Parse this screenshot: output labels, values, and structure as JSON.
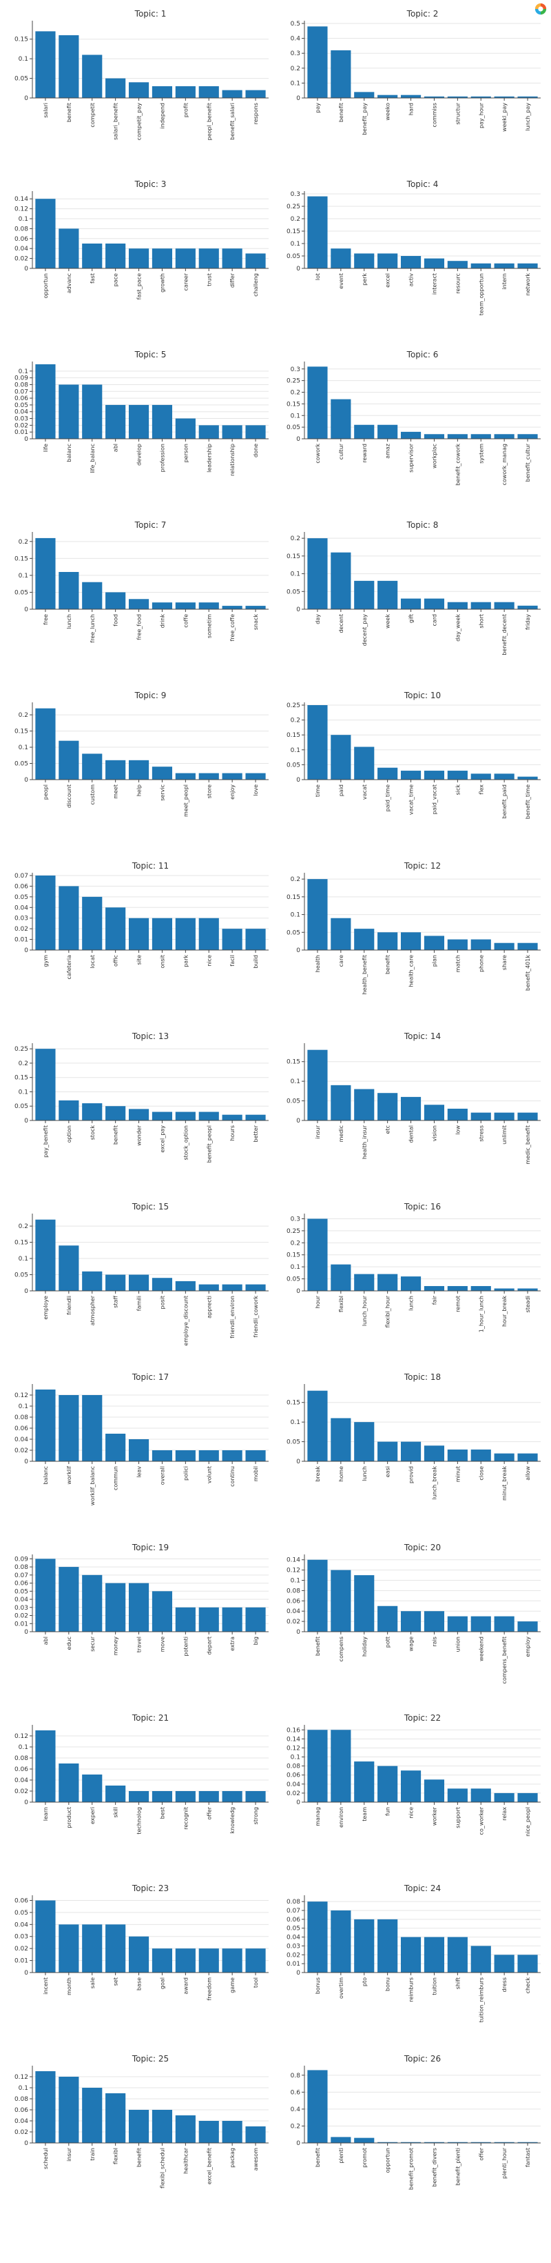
{
  "toolbar": {
    "logo_icon": "bokeh-logo-icon"
  },
  "style": {
    "bar_color": "#1f77b4",
    "grid_color": "#e5e5e5",
    "axis_color": "#444444"
  },
  "chart_data": [
    {
      "type": "bar",
      "title": "Topic: 1",
      "ylim": [
        0,
        0.19
      ],
      "yticks": [
        0,
        0.05,
        0.1,
        0.15
      ],
      "tick_labels": [
        "0",
        "0.05",
        "0.1",
        "0.15"
      ],
      "categories": [
        "salari",
        "benefit",
        "competit",
        "salari_benefit",
        "competit_pay",
        "independ",
        "profit",
        "peopl_benefit",
        "benefit_salari",
        "respons"
      ],
      "values": [
        0.17,
        0.16,
        0.11,
        0.05,
        0.04,
        0.03,
        0.03,
        0.03,
        0.02,
        0.02
      ]
    },
    {
      "type": "bar",
      "title": "Topic: 2",
      "ylim": [
        0,
        0.5
      ],
      "yticks": [
        0,
        0.1,
        0.2,
        0.3,
        0.4,
        0.5
      ],
      "tick_labels": [
        "0",
        "0.1",
        "0.2",
        "0.3",
        "0.4",
        "0.5"
      ],
      "categories": [
        "pay",
        "benefit",
        "benefit_pay",
        "weeko",
        "hard",
        "commiss",
        "structur",
        "pay_hour",
        "weekl_pay",
        "lunch_pay"
      ],
      "values": [
        0.48,
        0.32,
        0.04,
        0.02,
        0.02,
        0.01,
        0.01,
        0.01,
        0.01,
        0.01
      ]
    },
    {
      "type": "bar",
      "title": "Topic: 3",
      "ylim": [
        0,
        0.15
      ],
      "yticks": [
        0,
        0.02,
        0.04,
        0.06,
        0.08,
        0.1,
        0.12,
        0.14
      ],
      "tick_labels": [
        "0",
        "0.02",
        "0.04",
        "0.06",
        "0.08",
        "0.1",
        "0.12",
        "0.14"
      ],
      "categories": [
        "opportun",
        "advanc",
        "fast",
        "pace",
        "fast_pace",
        "growth",
        "career",
        "trust",
        "differ",
        "challeng"
      ],
      "values": [
        0.14,
        0.08,
        0.05,
        0.05,
        0.04,
        0.04,
        0.04,
        0.04,
        0.04,
        0.03
      ]
    },
    {
      "type": "bar",
      "title": "Topic: 4",
      "ylim": [
        0,
        0.3
      ],
      "yticks": [
        0,
        0.05,
        0.1,
        0.15,
        0.2,
        0.25,
        0.3
      ],
      "tick_labels": [
        "0",
        "0.05",
        "0.1",
        "0.15",
        "0.2",
        "0.25",
        "0.3"
      ],
      "categories": [
        "lot",
        "event",
        "perk",
        "excel",
        "activ",
        "interact",
        "resourc",
        "team_opportun",
        "intern",
        "network"
      ],
      "values": [
        0.29,
        0.08,
        0.06,
        0.06,
        0.05,
        0.04,
        0.03,
        0.02,
        0.02,
        0.02
      ]
    },
    {
      "type": "bar",
      "title": "Topic: 5",
      "ylim": [
        0,
        0.11
      ],
      "yticks": [
        0,
        0.01,
        0.02,
        0.03,
        0.04,
        0.05,
        0.06,
        0.07,
        0.08,
        0.09,
        0.1
      ],
      "tick_labels": [
        "0",
        "0.01",
        "0.02",
        "0.03",
        "0.04",
        "0.05",
        "0.06",
        "0.07",
        "0.08",
        "0.09",
        "0.1"
      ],
      "categories": [
        "life",
        "balanc",
        "life_balanc",
        "abl",
        "develop",
        "profession",
        "person",
        "leadership",
        "relationship",
        "done"
      ],
      "values": [
        0.11,
        0.08,
        0.08,
        0.05,
        0.05,
        0.05,
        0.03,
        0.02,
        0.02,
        0.02
      ]
    },
    {
      "type": "bar",
      "title": "Topic: 6",
      "ylim": [
        0,
        0.32
      ],
      "yticks": [
        0,
        0.05,
        0.1,
        0.15,
        0.2,
        0.25,
        0.3
      ],
      "tick_labels": [
        "0",
        "0.05",
        "0.1",
        "0.15",
        "0.2",
        "0.25",
        "0.3"
      ],
      "categories": [
        "cowork",
        "cultur",
        "reward",
        "amaz",
        "supervisor",
        "workplac",
        "benefit_cowork",
        "system",
        "cowork_manag",
        "benefit_cultur"
      ],
      "values": [
        0.31,
        0.17,
        0.06,
        0.06,
        0.03,
        0.02,
        0.02,
        0.02,
        0.02,
        0.02
      ]
    },
    {
      "type": "bar",
      "title": "Topic: 7",
      "ylim": [
        0,
        0.22
      ],
      "yticks": [
        0,
        0.05,
        0.1,
        0.15,
        0.2
      ],
      "tick_labels": [
        "0",
        "0.05",
        "0.1",
        "0.15",
        "0.2"
      ],
      "categories": [
        "free",
        "lunch",
        "free_lunch",
        "food",
        "free_food",
        "drink",
        "coffe",
        "sometim",
        "free_coffe",
        "snack"
      ],
      "values": [
        0.21,
        0.11,
        0.08,
        0.05,
        0.03,
        0.02,
        0.02,
        0.02,
        0.01,
        0.01
      ]
    },
    {
      "type": "bar",
      "title": "Topic: 8",
      "ylim": [
        0,
        0.21
      ],
      "yticks": [
        0,
        0.05,
        0.1,
        0.15,
        0.2
      ],
      "tick_labels": [
        "0",
        "0.05",
        "0.1",
        "0.15",
        "0.2"
      ],
      "categories": [
        "day",
        "decent",
        "decent_pay",
        "week",
        "gift",
        "card",
        "day_week",
        "short",
        "benefit_decent",
        "friday"
      ],
      "values": [
        0.2,
        0.16,
        0.08,
        0.08,
        0.03,
        0.03,
        0.02,
        0.02,
        0.02,
        0.01
      ]
    },
    {
      "type": "bar",
      "title": "Topic: 9",
      "ylim": [
        0,
        0.23
      ],
      "yticks": [
        0,
        0.05,
        0.1,
        0.15,
        0.2
      ],
      "tick_labels": [
        "0",
        "0.05",
        "0.1",
        "0.15",
        "0.2"
      ],
      "categories": [
        "peopl",
        "discount",
        "custom",
        "meet",
        "help",
        "servic",
        "meet_peopl",
        "store",
        "enjoy",
        "love"
      ],
      "values": [
        0.22,
        0.12,
        0.08,
        0.06,
        0.06,
        0.04,
        0.02,
        0.02,
        0.02,
        0.02
      ]
    },
    {
      "type": "bar",
      "title": "Topic: 10",
      "ylim": [
        0,
        0.25
      ],
      "yticks": [
        0,
        0.05,
        0.1,
        0.15,
        0.2,
        0.25
      ],
      "tick_labels": [
        "0",
        "0.05",
        "0.1",
        "0.15",
        "0.2",
        "0.25"
      ],
      "categories": [
        "time",
        "paid",
        "vacat",
        "paid_time",
        "vacat_time",
        "paid_vacat",
        "sick",
        "flex",
        "benefit_paid",
        "benefit_time"
      ],
      "values": [
        0.25,
        0.15,
        0.11,
        0.04,
        0.03,
        0.03,
        0.03,
        0.02,
        0.02,
        0.01
      ]
    },
    {
      "type": "bar",
      "title": "Topic: 11",
      "ylim": [
        0,
        0.07
      ],
      "yticks": [
        0,
        0.01,
        0.02,
        0.03,
        0.04,
        0.05,
        0.06,
        0.07
      ],
      "tick_labels": [
        "0",
        "0.01",
        "0.02",
        "0.03",
        "0.04",
        "0.05",
        "0.06",
        "0.07"
      ],
      "categories": [
        "gym",
        "cafeteria",
        "locat",
        "offic",
        "site",
        "onsit",
        "park",
        "nice",
        "facil",
        "build"
      ],
      "values": [
        0.07,
        0.06,
        0.05,
        0.04,
        0.03,
        0.03,
        0.03,
        0.03,
        0.02,
        0.02
      ]
    },
    {
      "type": "bar",
      "title": "Topic: 12",
      "ylim": [
        0,
        0.21
      ],
      "yticks": [
        0,
        0.05,
        0.1,
        0.15,
        0.2
      ],
      "tick_labels": [
        "0",
        "0.05",
        "0.1",
        "0.15",
        "0.2"
      ],
      "categories": [
        "health",
        "care",
        "health_benefit",
        "benefit",
        "health_care",
        "plan",
        "match",
        "phone",
        "share",
        "benefit_401k"
      ],
      "values": [
        0.2,
        0.09,
        0.06,
        0.05,
        0.05,
        0.04,
        0.03,
        0.03,
        0.02,
        0.02
      ]
    },
    {
      "type": "bar",
      "title": "Topic: 13",
      "ylim": [
        0,
        0.26
      ],
      "yticks": [
        0,
        0.05,
        0.1,
        0.15,
        0.2,
        0.25
      ],
      "tick_labels": [
        "0",
        "0.05",
        "0.1",
        "0.15",
        "0.2",
        "0.25"
      ],
      "categories": [
        "pay_benefit",
        "option",
        "stock",
        "benefit",
        "wonder",
        "excel_pay",
        "stock_option",
        "benefit_peopl",
        "hours",
        "better"
      ],
      "values": [
        0.25,
        0.07,
        0.06,
        0.05,
        0.04,
        0.03,
        0.03,
        0.03,
        0.02,
        0.02
      ]
    },
    {
      "type": "bar",
      "title": "Topic: 14",
      "ylim": [
        0,
        0.19
      ],
      "yticks": [
        0,
        0.05,
        0.1,
        0.15
      ],
      "tick_labels": [
        "0",
        "0.05",
        "0.1",
        "0.15"
      ],
      "categories": [
        "insur",
        "medic",
        "health_insur",
        "etc",
        "dental",
        "vision",
        "low",
        "stress",
        "unlimit",
        "medic_benefit"
      ],
      "values": [
        0.18,
        0.09,
        0.08,
        0.07,
        0.06,
        0.04,
        0.03,
        0.02,
        0.02,
        0.02
      ]
    },
    {
      "type": "bar",
      "title": "Topic: 15",
      "ylim": [
        0,
        0.23
      ],
      "yticks": [
        0,
        0.05,
        0.1,
        0.15,
        0.2
      ],
      "tick_labels": [
        "0",
        "0.05",
        "0.1",
        "0.15",
        "0.2"
      ],
      "categories": [
        "employe",
        "friendli",
        "atmospher",
        "staff",
        "famili",
        "posit",
        "employe_discount",
        "apprecti",
        "friendli_environ",
        "friendli_cowork"
      ],
      "values": [
        0.22,
        0.14,
        0.06,
        0.05,
        0.05,
        0.04,
        0.03,
        0.02,
        0.02,
        0.02
      ]
    },
    {
      "type": "bar",
      "title": "Topic: 16",
      "ylim": [
        0,
        0.31
      ],
      "yticks": [
        0,
        0.05,
        0.1,
        0.15,
        0.2,
        0.25,
        0.3
      ],
      "tick_labels": [
        "0",
        "0.05",
        "0.1",
        "0.15",
        "0.2",
        "0.25",
        "0.3"
      ],
      "categories": [
        "hour",
        "flexibl",
        "lunch_hour",
        "flexibl_hour",
        "lunch",
        "fair",
        "remot",
        "1_hour_lunch",
        "hour_break",
        "steadi"
      ],
      "values": [
        0.3,
        0.11,
        0.07,
        0.07,
        0.06,
        0.02,
        0.02,
        0.02,
        0.01,
        0.01
      ]
    },
    {
      "type": "bar",
      "title": "Topic: 17",
      "ylim": [
        0,
        0.135
      ],
      "yticks": [
        0,
        0.02,
        0.04,
        0.06,
        0.08,
        0.1,
        0.12
      ],
      "tick_labels": [
        "0",
        "0.02",
        "0.04",
        "0.06",
        "0.08",
        "0.1",
        "0.12"
      ],
      "categories": [
        "balanc",
        "worklif",
        "worklif_balanc",
        "commun",
        "leav",
        "overall",
        "polici",
        "volunt",
        "continu",
        "mobil"
      ],
      "values": [
        0.13,
        0.12,
        0.12,
        0.05,
        0.04,
        0.02,
        0.02,
        0.02,
        0.02,
        0.02
      ]
    },
    {
      "type": "bar",
      "title": "Topic: 18",
      "ylim": [
        0,
        0.19
      ],
      "yticks": [
        0,
        0.05,
        0.1,
        0.15
      ],
      "tick_labels": [
        "0",
        "0.05",
        "0.1",
        "0.15"
      ],
      "categories": [
        "break",
        "home",
        "lunch",
        "easi",
        "provid",
        "lunch_break",
        "minut",
        "close",
        "minut_break",
        "allow"
      ],
      "values": [
        0.18,
        0.11,
        0.1,
        0.05,
        0.05,
        0.04,
        0.03,
        0.03,
        0.02,
        0.02
      ]
    },
    {
      "type": "bar",
      "title": "Topic: 19",
      "ylim": [
        0,
        0.092
      ],
      "yticks": [
        0,
        0.01,
        0.02,
        0.03,
        0.04,
        0.05,
        0.06,
        0.07,
        0.08,
        0.09
      ],
      "tick_labels": [
        "0",
        "0.01",
        "0.02",
        "0.03",
        "0.04",
        "0.05",
        "0.06",
        "0.07",
        "0.08",
        "0.09"
      ],
      "categories": [
        "abl",
        "educ",
        "secur",
        "money",
        "travel",
        "move",
        "potenti",
        "depart",
        "extra",
        "big"
      ],
      "values": [
        0.09,
        0.08,
        0.07,
        0.06,
        0.06,
        0.05,
        0.03,
        0.03,
        0.03,
        0.03
      ]
    },
    {
      "type": "bar",
      "title": "Topic: 20",
      "ylim": [
        0,
        0.145
      ],
      "yticks": [
        0,
        0.02,
        0.04,
        0.06,
        0.08,
        0.1,
        0.12,
        0.14
      ],
      "tick_labels": [
        "0",
        "0.02",
        "0.04",
        "0.06",
        "0.08",
        "0.1",
        "0.12",
        "0.14"
      ],
      "categories": [
        "benefit",
        "compens",
        "holiday",
        "pott",
        "wage",
        "rais",
        "union",
        "weekend",
        "compens_benefit",
        "employ"
      ],
      "values": [
        0.14,
        0.12,
        0.11,
        0.05,
        0.04,
        0.04,
        0.03,
        0.03,
        0.03,
        0.02
      ]
    },
    {
      "type": "bar",
      "title": "Topic: 21",
      "ylim": [
        0,
        0.135
      ],
      "yticks": [
        0,
        0.02,
        0.04,
        0.06,
        0.08,
        0.1,
        0.12
      ],
      "tick_labels": [
        "0",
        "0.02",
        "0.04",
        "0.06",
        "0.08",
        "0.1",
        "0.12"
      ],
      "categories": [
        "learn",
        "product",
        "experi",
        "skill",
        "technolog",
        "best",
        "recognit",
        "offer",
        "knowledg",
        "strong"
      ],
      "values": [
        0.13,
        0.07,
        0.05,
        0.03,
        0.02,
        0.02,
        0.02,
        0.02,
        0.02,
        0.02
      ]
    },
    {
      "type": "bar",
      "title": "Topic: 22",
      "ylim": [
        0,
        0.165
      ],
      "yticks": [
        0,
        0.02,
        0.04,
        0.06,
        0.08,
        0.1,
        0.12,
        0.14,
        0.16
      ],
      "tick_labels": [
        "0",
        "0.02",
        "0.04",
        "0.06",
        "0.08",
        "0.1",
        "0.12",
        "0.14",
        "0.16"
      ],
      "categories": [
        "manag",
        "environ",
        "team",
        "fun",
        "nice",
        "worker",
        "support",
        "co_worker",
        "relax",
        "nice_peopl"
      ],
      "values": [
        0.16,
        0.16,
        0.09,
        0.08,
        0.07,
        0.05,
        0.03,
        0.03,
        0.02,
        0.02
      ]
    },
    {
      "type": "bar",
      "title": "Topic: 23",
      "ylim": [
        0,
        0.062
      ],
      "yticks": [
        0,
        0.01,
        0.02,
        0.03,
        0.04,
        0.05,
        0.06
      ],
      "tick_labels": [
        "0",
        "0.01",
        "0.02",
        "0.03",
        "0.04",
        "0.05",
        "0.06"
      ],
      "categories": [
        "incent",
        "month",
        "sale",
        "set",
        "base",
        "goal",
        "award",
        "freedom",
        "game",
        "tool"
      ],
      "values": [
        0.06,
        0.04,
        0.04,
        0.04,
        0.03,
        0.02,
        0.02,
        0.02,
        0.02,
        0.02
      ]
    },
    {
      "type": "bar",
      "title": "Topic: 24",
      "ylim": [
        0,
        0.084
      ],
      "yticks": [
        0,
        0.01,
        0.02,
        0.03,
        0.04,
        0.05,
        0.06,
        0.07,
        0.08
      ],
      "tick_labels": [
        "0",
        "0.01",
        "0.02",
        "0.03",
        "0.04",
        "0.05",
        "0.06",
        "0.07",
        "0.08"
      ],
      "categories": [
        "bonus",
        "overtim",
        "pto",
        "bonu",
        "reimburs",
        "tuition",
        "shift",
        "tuition_reimburs",
        "dress",
        "check"
      ],
      "values": [
        0.08,
        0.07,
        0.06,
        0.06,
        0.04,
        0.04,
        0.04,
        0.03,
        0.02,
        0.02
      ]
    },
    {
      "type": "bar",
      "title": "Topic: 25",
      "ylim": [
        0,
        0.135
      ],
      "yticks": [
        0,
        0.02,
        0.04,
        0.06,
        0.08,
        0.1,
        0.12
      ],
      "tick_labels": [
        "0",
        "0.02",
        "0.04",
        "0.06",
        "0.08",
        "0.1",
        "0.12"
      ],
      "categories": [
        "schedul",
        "insur",
        "train",
        "flexibl",
        "benefit",
        "flexibl_schedul",
        "healthcar",
        "excel_benefit",
        "packag",
        "awesom"
      ],
      "values": [
        0.13,
        0.12,
        0.1,
        0.09,
        0.06,
        0.06,
        0.05,
        0.04,
        0.04,
        0.03
      ]
    },
    {
      "type": "bar",
      "title": "Topic: 26",
      "ylim": [
        0,
        0.88
      ],
      "yticks": [
        0,
        0.2,
        0.4,
        0.6,
        0.8
      ],
      "tick_labels": [
        "0",
        "0.2",
        "0.4",
        "0.6",
        "0.8"
      ],
      "categories": [
        "benefit",
        "plenti",
        "promot",
        "opportun",
        "benefit_promot",
        "benefit_divers",
        "benefit_plenti",
        "offer",
        "plenti_hour",
        "fantast"
      ],
      "values": [
        0.86,
        0.07,
        0.06,
        0.01,
        0.01,
        0.01,
        0.01,
        0.01,
        0.01,
        0.01
      ]
    }
  ]
}
